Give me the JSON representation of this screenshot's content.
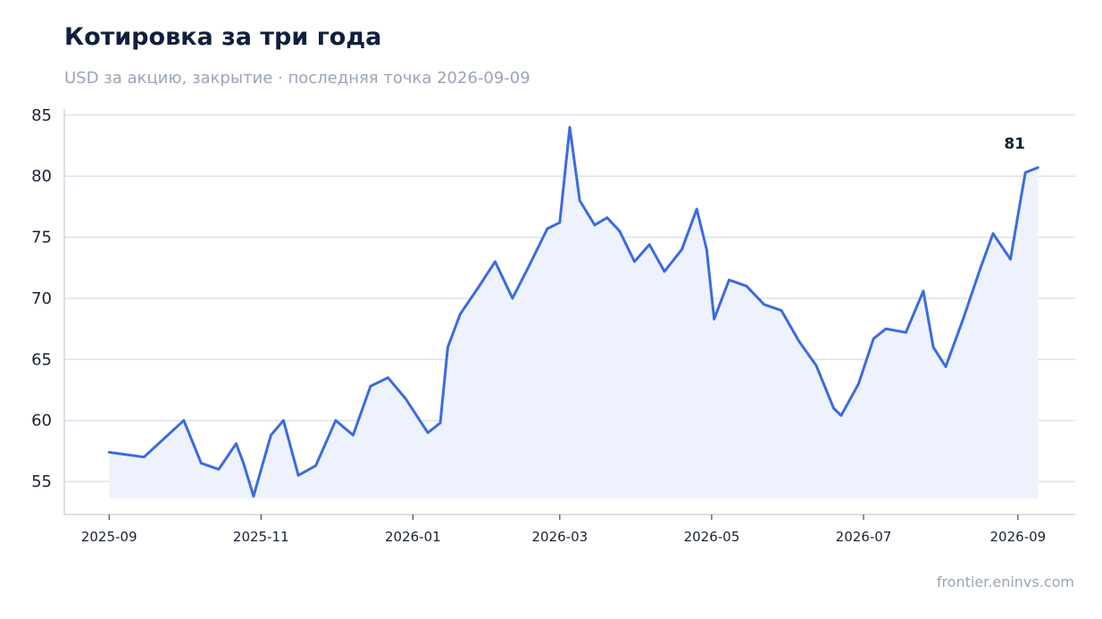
{
  "header": {
    "title": "Котировка за три года",
    "subtitle": "USD за акцию, закрытие · последняя точка 2026-09-09"
  },
  "footer": {
    "source": "frontier.eninvs.com"
  },
  "colors": {
    "line": "#3b6be0",
    "area": "#eef2fc",
    "grid": "#dde2ec",
    "axis": "#d0d5df"
  },
  "chart_data": {
    "type": "area",
    "title": "Котировка за три года",
    "subtitle": "USD за акцию, закрытие · последняя точка 2026-09-09",
    "xlabel": "",
    "ylabel": "",
    "ylim": [
      52.3,
      85.5
    ],
    "yticks": [
      55,
      60,
      65,
      70,
      75,
      80,
      85
    ],
    "xlim": [
      "2025-08-14",
      "2026-09-24"
    ],
    "xticks": [
      "2025-09",
      "2025-11",
      "2026-01",
      "2026-03",
      "2026-05",
      "2026-07",
      "2026-09"
    ],
    "grid": "horizontal",
    "legend": "none",
    "last_label": "81",
    "series": [
      {
        "x": [
          "2025-09-01",
          "2025-09-15",
          "2025-10-01",
          "2025-10-08",
          "2025-10-15",
          "2025-10-22",
          "2025-10-25",
          "2025-10-29",
          "2025-11-05",
          "2025-11-10",
          "2025-11-16",
          "2025-11-23",
          "2025-12-01",
          "2025-12-08",
          "2025-12-15",
          "2025-12-22",
          "2025-12-29",
          "2026-01-07",
          "2026-01-12",
          "2026-01-15",
          "2026-01-20",
          "2026-01-27",
          "2026-02-03",
          "2026-02-10",
          "2026-02-17",
          "2026-02-24",
          "2026-03-01",
          "2026-03-05",
          "2026-03-09",
          "2026-03-15",
          "2026-03-20",
          "2026-03-25",
          "2026-03-31",
          "2026-04-06",
          "2026-04-12",
          "2026-04-19",
          "2026-04-25",
          "2026-04-29",
          "2026-05-02",
          "2026-05-08",
          "2026-05-15",
          "2026-05-22",
          "2026-05-29",
          "2026-06-05",
          "2026-06-12",
          "2026-06-19",
          "2026-06-22",
          "2026-06-29",
          "2026-07-05",
          "2026-07-10",
          "2026-07-18",
          "2026-07-25",
          "2026-07-29",
          "2026-08-03",
          "2026-08-10",
          "2026-08-17",
          "2026-08-22",
          "2026-08-29",
          "2026-09-02",
          "2026-09-04",
          "2026-09-09"
        ],
        "y": [
          57.4,
          57.0,
          60.0,
          56.5,
          56.0,
          58.1,
          56.5,
          53.8,
          58.8,
          60.0,
          55.5,
          56.3,
          60.0,
          58.8,
          62.8,
          63.5,
          61.8,
          59.0,
          59.8,
          66.0,
          68.7,
          70.8,
          73.0,
          70.0,
          72.8,
          75.7,
          76.2,
          84.0,
          78.0,
          76.0,
          76.6,
          75.5,
          73.0,
          74.4,
          72.2,
          74.0,
          77.3,
          74.0,
          68.3,
          71.5,
          71.0,
          69.5,
          69.0,
          66.5,
          64.5,
          61.0,
          60.4,
          63.0,
          66.7,
          67.5,
          67.2,
          70.6,
          66.0,
          64.4,
          68.3,
          72.5,
          75.3,
          73.2,
          78.0,
          80.3,
          80.7
        ]
      }
    ]
  }
}
